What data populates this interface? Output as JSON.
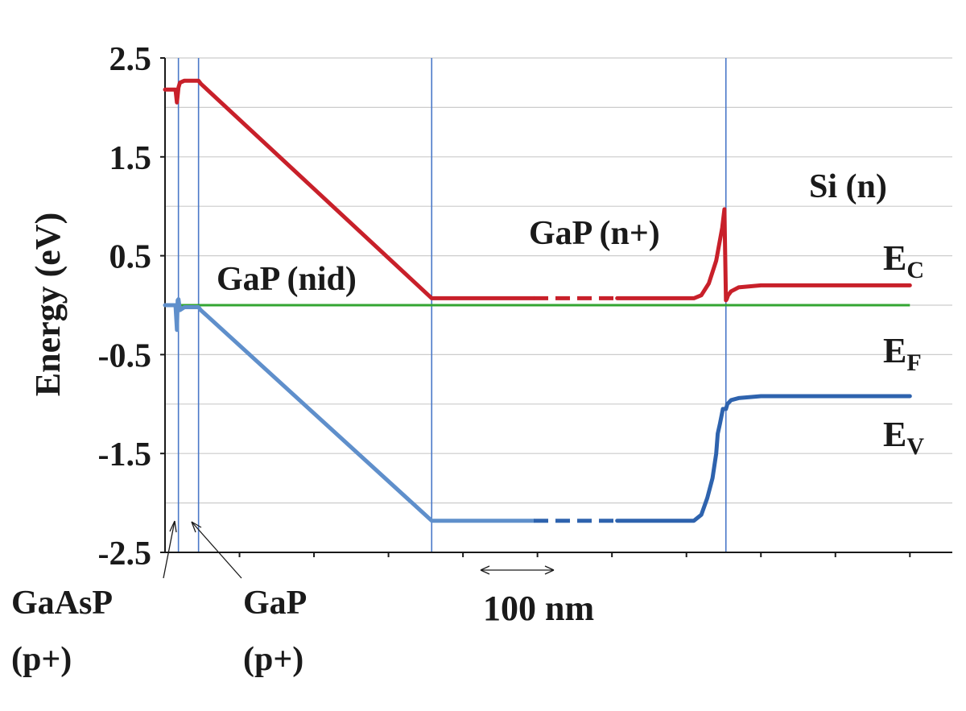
{
  "chart_data": {
    "type": "line",
    "ylabel": "Energy (eV)",
    "ylim": [
      -2.5,
      2.5
    ],
    "y_ticks": [
      "2.5",
      "1.5",
      "0.5",
      "-0.5",
      "-1.5",
      "-2.5"
    ],
    "y_tick_values": [
      2.5,
      1.5,
      0.5,
      -0.5,
      -1.5,
      -2.5
    ],
    "x_units": "nm",
    "xlim": [
      0,
      1000
    ],
    "x_tick_spacing_nm": 100,
    "grid": true,
    "scale_bar": {
      "label": "100 nm",
      "length_nm": 100
    },
    "layer_boundaries_nm": [
      18,
      45,
      358,
      753
    ],
    "broken_axis_nm": [
      495,
      607
    ],
    "colors": {
      "conduction_band": "#c8202a",
      "valence_band": "#5f8fcb",
      "valence_band_dark": "#2e63ae",
      "fermi_level": "#33a532",
      "boundary": "#4a78c8",
      "grid": "#cccccc"
    },
    "series": [
      {
        "name": "E",
        "subscript": "C",
        "x": [
          0,
          14,
          16,
          18,
          20,
          26,
          45,
          48,
          358,
          495,
          607,
          710,
          720,
          730,
          740,
          748,
          751,
          753,
          754,
          756,
          760,
          770,
          800,
          1000
        ],
        "values": [
          2.18,
          2.18,
          2.05,
          2.2,
          2.25,
          2.27,
          2.27,
          2.24,
          0.07,
          0.07,
          0.07,
          0.07,
          0.1,
          0.22,
          0.45,
          0.78,
          0.97,
          0.05,
          0.06,
          0.1,
          0.14,
          0.18,
          0.2,
          0.2
        ]
      },
      {
        "name": "E",
        "subscript": "F",
        "x": [
          0,
          1000
        ],
        "values": [
          0.0,
          0.0
        ]
      },
      {
        "name": "E",
        "subscript": "V",
        "x": [
          0,
          14,
          16,
          17,
          18,
          20,
          26,
          45,
          48,
          358,
          495,
          607,
          710,
          720,
          728,
          735,
          740,
          742,
          745,
          749,
          753,
          755,
          760,
          770,
          800,
          1000
        ],
        "values": [
          0.0,
          0.0,
          -0.25,
          0.05,
          0.06,
          -0.05,
          -0.02,
          -0.02,
          -0.05,
          -2.18,
          -2.18,
          -2.18,
          -2.18,
          -2.12,
          -1.95,
          -1.75,
          -1.5,
          -1.3,
          -1.2,
          -1.05,
          -1.05,
          -1.0,
          -0.96,
          -0.94,
          -0.92,
          -0.92
        ]
      }
    ],
    "annotations": [
      {
        "text": "GaP (nid)"
      },
      {
        "text": "GaP (n+)"
      },
      {
        "text": "Si (n)"
      },
      {
        "text": "GaAsP",
        "text2": "(p+)"
      },
      {
        "text": "GaP",
        "text2": "(p+)"
      }
    ]
  }
}
